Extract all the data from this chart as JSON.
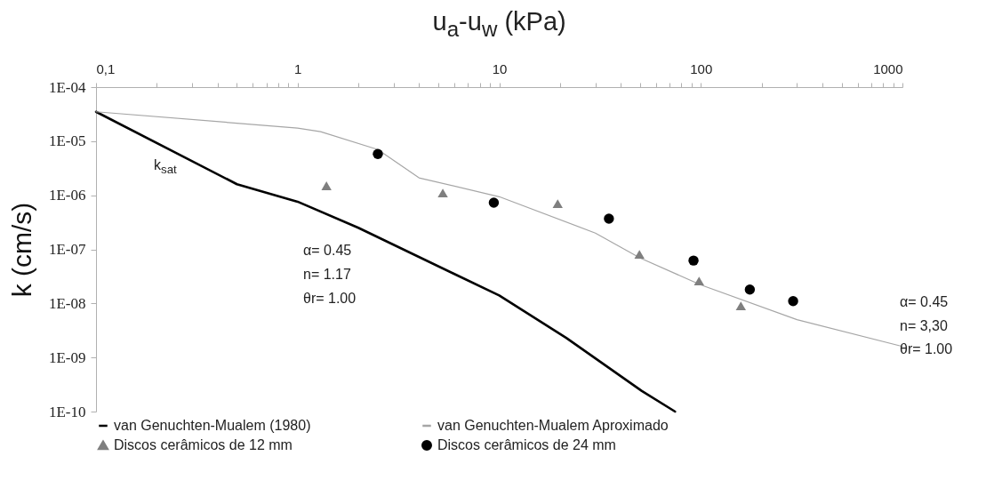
{
  "chart_data": {
    "type": "line",
    "xlabel": "u$_{a}$-u$_{w}$ (kPa)",
    "ylabel": "k (cm/s)",
    "log": "xy",
    "grid": false,
    "legend": "bottom",
    "xlim": [
      0.1,
      1000
    ],
    "ylim": [
      1e-10,
      0.0001
    ],
    "xticks": [
      {
        "value": 0.1,
        "label": "0,1"
      },
      {
        "value": 0.2,
        "label": null
      },
      {
        "value": 0.3,
        "label": null
      },
      {
        "value": 0.4,
        "label": null
      },
      {
        "value": 0.5,
        "label": null
      },
      {
        "value": 0.6,
        "label": null
      },
      {
        "value": 0.7,
        "label": null
      },
      {
        "value": 0.8,
        "label": null
      },
      {
        "value": 0.9,
        "label": null
      },
      1,
      {
        "value": 2,
        "label": null
      },
      {
        "value": 3,
        "label": null
      },
      {
        "value": 4,
        "label": null
      },
      {
        "value": 5,
        "label": null
      },
      {
        "value": 6,
        "label": null
      },
      {
        "value": 7,
        "label": null
      },
      {
        "value": 8,
        "label": null
      },
      {
        "value": 9,
        "label": null
      },
      10,
      {
        "value": 20,
        "label": null
      },
      {
        "value": 30,
        "label": null
      },
      {
        "value": 40,
        "label": null
      },
      {
        "value": 50,
        "label": null
      },
      {
        "value": 60,
        "label": null
      },
      {
        "value": 70,
        "label": null
      },
      {
        "value": 80,
        "label": null
      },
      {
        "value": 90,
        "label": null
      },
      100,
      {
        "value": 200,
        "label": null
      },
      {
        "value": 300,
        "label": null
      },
      {
        "value": 400,
        "label": null
      },
      {
        "value": 500,
        "label": null
      },
      {
        "value": 600,
        "label": null
      },
      {
        "value": 700,
        "label": null
      },
      {
        "value": 800,
        "label": null
      },
      {
        "value": 900,
        "label": null
      },
      1000
    ],
    "yticks": [
      {
        "value": 1e-10,
        "label": "1E-10"
      },
      {
        "value": 1e-09,
        "label": "1E-09"
      },
      {
        "value": 1e-08,
        "label": "1E-08"
      },
      {
        "value": 1e-07,
        "label": "1E-07"
      },
      {
        "value": 1e-06,
        "label": "1E-06"
      },
      {
        "value": 1e-05,
        "label": "1E-05"
      },
      {
        "value": 0.0001,
        "label": "1E-04"
      }
    ],
    "series": [
      {
        "name": "van Genuchten-Mualem (1980)",
        "marker": "none",
        "color": "#000000",
        "x": [
          0.1,
          0.5,
          1,
          2,
          5.9,
          10,
          21.5,
          51,
          74.5
        ],
        "values": [
          3.5e-05,
          1.6e-06,
          7.6e-07,
          2.5e-07,
          3.6e-08,
          1.4e-08,
          2.3e-09,
          2.4e-10,
          1e-10
        ]
      },
      {
        "name": "van Genuchten-Mualem Aproximado",
        "marker": "none",
        "color": "#a6a6a6",
        "x": [
          0.1,
          1,
          1.3,
          2.5,
          4,
          10,
          30,
          50,
          100,
          300,
          1000
        ],
        "values": [
          3.5e-05,
          1.75e-05,
          1.5e-05,
          7e-06,
          2.1e-06,
          9.4e-07,
          2e-07,
          6.9e-08,
          2.2e-08,
          5e-09,
          1.6e-09
        ]
      },
      {
        "name": "Discos cerâmicos de 12 mm",
        "type": "scatter",
        "marker": "triangle",
        "color": "#7f7f7f",
        "x": [
          1.39,
          5.25,
          19.5,
          49.6,
          98,
          158
        ],
        "values": [
          1.5e-06,
          1.1e-06,
          7e-07,
          8.1e-08,
          2.6e-08,
          9e-09
        ]
      },
      {
        "name": "Discos cerâmicos de 24 mm",
        "type": "scatter",
        "marker": "circle",
        "color": "#000000",
        "x": [
          2.5,
          9.4,
          35,
          92,
          175,
          287
        ],
        "values": [
          5.8e-06,
          7.3e-07,
          3.7e-07,
          6.2e-08,
          1.8e-08,
          1.1e-08
        ]
      }
    ],
    "annotations": [
      "k$_{sat}$",
      "α= 0.45",
      "n= 1.17",
      "θr= 1.00",
      "α= 0.45",
      "n= 3,30",
      "θr= 1.00"
    ]
  }
}
